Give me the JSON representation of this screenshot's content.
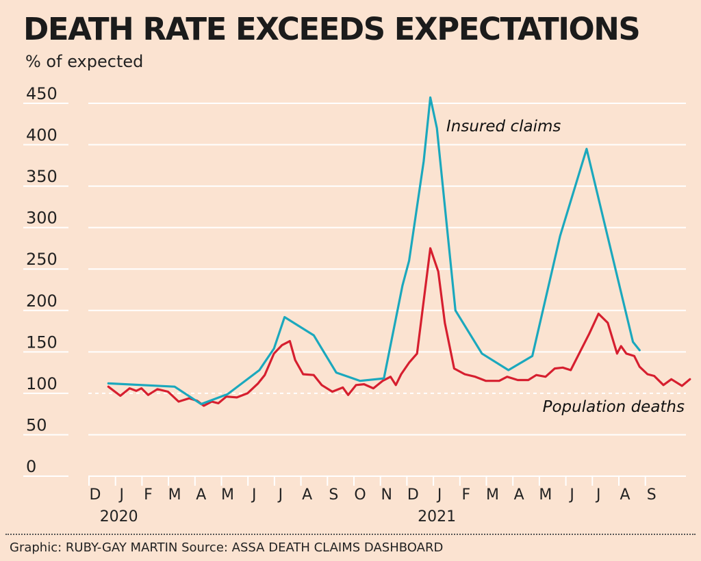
{
  "title": "DEATH RATE EXCEEDS EXPECTATIONS",
  "unit_label": "% of expected",
  "credit": "Graphic: RUBY-GAY MARTIN Source: ASSA DEATH CLAIMS DASHBOARD",
  "colors": {
    "background": "#fbe3d1",
    "insured_claims": "#1ba8bd",
    "population_deaths": "#d61f2f",
    "gridline": "#ffffff",
    "baseline_dashed": "#ffffff"
  },
  "chart_data": {
    "type": "line",
    "title": "DEATH RATE EXCEEDS EXPECTATIONS",
    "ylabel": "% of expected",
    "ylim": [
      0,
      450
    ],
    "yticks": [
      0,
      50,
      100,
      150,
      200,
      250,
      300,
      350,
      400,
      450
    ],
    "xlim": [
      0,
      22.5
    ],
    "x_ticks": [
      {
        "x": 0,
        "label": "D"
      },
      {
        "x": 1,
        "label": "J"
      },
      {
        "x": 2,
        "label": "F"
      },
      {
        "x": 3,
        "label": "M"
      },
      {
        "x": 4,
        "label": "A"
      },
      {
        "x": 5,
        "label": "M"
      },
      {
        "x": 6,
        "label": "J"
      },
      {
        "x": 7,
        "label": "J"
      },
      {
        "x": 8,
        "label": "A"
      },
      {
        "x": 9,
        "label": "S"
      },
      {
        "x": 10,
        "label": "O"
      },
      {
        "x": 11,
        "label": "N"
      },
      {
        "x": 12,
        "label": "D"
      },
      {
        "x": 13,
        "label": "J"
      },
      {
        "x": 14,
        "label": "F"
      },
      {
        "x": 15,
        "label": "M"
      },
      {
        "x": 16,
        "label": "A"
      },
      {
        "x": 17,
        "label": "M"
      },
      {
        "x": 18,
        "label": "J"
      },
      {
        "x": 19,
        "label": "J"
      },
      {
        "x": 20,
        "label": "A"
      },
      {
        "x": 21,
        "label": "S"
      }
    ],
    "year_labels": [
      {
        "x": 1,
        "label": "2020"
      },
      {
        "x": 13,
        "label": "2021"
      }
    ],
    "reference_line": {
      "y": 100,
      "style": "dashed"
    },
    "grid": true,
    "series": [
      {
        "name": "Insured claims",
        "color": "#1ba8bd",
        "points": [
          [
            0.5,
            112
          ],
          [
            3.0,
            108
          ],
          [
            4.0,
            87
          ],
          [
            5.0,
            99
          ],
          [
            6.2,
            128
          ],
          [
            6.75,
            154
          ],
          [
            7.15,
            192
          ],
          [
            8.25,
            170
          ],
          [
            9.1,
            125
          ],
          [
            10.0,
            115
          ],
          [
            10.9,
            118
          ],
          [
            11.6,
            230
          ],
          [
            11.85,
            260
          ],
          [
            12.4,
            380
          ],
          [
            12.65,
            457
          ],
          [
            12.9,
            420
          ],
          [
            13.6,
            200
          ],
          [
            14.6,
            148
          ],
          [
            15.6,
            128
          ],
          [
            16.5,
            145
          ],
          [
            17.55,
            290
          ],
          [
            18.55,
            395
          ],
          [
            20.3,
            162
          ],
          [
            20.55,
            152
          ]
        ]
      },
      {
        "name": "Population deaths",
        "color": "#d61f2f",
        "points": [
          [
            0.5,
            108
          ],
          [
            0.95,
            97
          ],
          [
            1.3,
            106
          ],
          [
            1.55,
            103
          ],
          [
            1.75,
            106
          ],
          [
            2.0,
            98
          ],
          [
            2.35,
            105
          ],
          [
            2.75,
            102
          ],
          [
            3.15,
            90
          ],
          [
            3.55,
            94
          ],
          [
            3.85,
            91
          ],
          [
            4.1,
            85
          ],
          [
            4.4,
            90
          ],
          [
            4.65,
            88
          ],
          [
            4.95,
            96
          ],
          [
            5.35,
            95
          ],
          [
            5.75,
            100
          ],
          [
            6.15,
            112
          ],
          [
            6.4,
            122
          ],
          [
            6.75,
            148
          ],
          [
            7.05,
            158
          ],
          [
            7.35,
            163
          ],
          [
            7.55,
            140
          ],
          [
            7.85,
            123
          ],
          [
            8.25,
            122
          ],
          [
            8.55,
            110
          ],
          [
            8.95,
            102
          ],
          [
            9.35,
            107
          ],
          [
            9.55,
            98
          ],
          [
            9.85,
            110
          ],
          [
            10.15,
            111
          ],
          [
            10.5,
            106
          ],
          [
            10.85,
            115
          ],
          [
            11.15,
            120
          ],
          [
            11.35,
            110
          ],
          [
            11.55,
            123
          ],
          [
            11.85,
            137
          ],
          [
            12.15,
            148
          ],
          [
            12.65,
            275
          ],
          [
            12.95,
            247
          ],
          [
            13.2,
            185
          ],
          [
            13.55,
            130
          ],
          [
            13.95,
            123
          ],
          [
            14.35,
            120
          ],
          [
            14.75,
            115
          ],
          [
            15.25,
            115
          ],
          [
            15.55,
            120
          ],
          [
            15.95,
            116
          ],
          [
            16.35,
            116
          ],
          [
            16.65,
            122
          ],
          [
            17.0,
            120
          ],
          [
            17.35,
            130
          ],
          [
            17.65,
            131
          ],
          [
            17.95,
            128
          ],
          [
            18.35,
            153
          ],
          [
            18.65,
            172
          ],
          [
            19.0,
            196
          ],
          [
            19.35,
            185
          ],
          [
            19.7,
            148
          ],
          [
            19.85,
            157
          ],
          [
            20.05,
            148
          ],
          [
            20.35,
            145
          ],
          [
            20.55,
            132
          ],
          [
            20.85,
            123
          ],
          [
            21.1,
            121
          ],
          [
            21.45,
            110
          ],
          [
            21.75,
            117
          ],
          [
            22.15,
            109
          ],
          [
            22.45,
            117
          ]
        ]
      }
    ],
    "annotations": [
      {
        "text": "Insured claims",
        "series": "Insured claims"
      },
      {
        "text": "Population deaths",
        "series": "Population deaths"
      }
    ]
  }
}
